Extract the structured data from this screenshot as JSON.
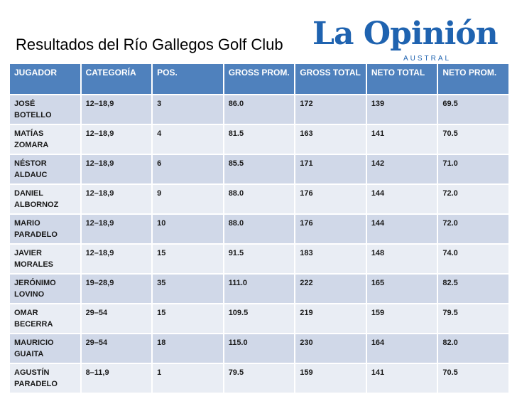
{
  "header": {
    "title": "Resultados del Río Gallegos Golf Club"
  },
  "logo": {
    "name": "La Opinión",
    "subtitle": "AUSTRAL"
  },
  "table": {
    "columns": [
      "JUGADOR",
      "CATEGORÍA",
      "POS.",
      "GROSS PROM.",
      "GROSS TOTAL",
      "NETO TOTAL",
      "NETO PROM."
    ],
    "rows": [
      [
        "JOSÉ BOTELLO",
        "12–18,9",
        "3",
        "86.0",
        "172",
        "139",
        "69.5"
      ],
      [
        "MATÍAS ZOMARA",
        "12–18,9",
        "4",
        "81.5",
        "163",
        "141",
        "70.5"
      ],
      [
        "NÉSTOR ALDAUC",
        "12–18,9",
        "6",
        "85.5",
        "171",
        "142",
        "71.0"
      ],
      [
        "DANIEL ALBORNOZ",
        "12–18,9",
        "9",
        "88.0",
        "176",
        "144",
        "72.0"
      ],
      [
        "MARIO PARADELO",
        "12–18,9",
        "10",
        "88.0",
        "176",
        "144",
        "72.0"
      ],
      [
        "JAVIER MORALES",
        "12–18,9",
        "15",
        "91.5",
        "183",
        "148",
        "74.0"
      ],
      [
        "JERÓNIMO LOVINO",
        "19–28,9",
        "35",
        "111.0",
        "222",
        "165",
        "82.5"
      ],
      [
        "OMAR BECERRA",
        "29–54",
        "15",
        "109.5",
        "219",
        "159",
        "79.5"
      ],
      [
        "MAURICIO GUAITA",
        "29–54",
        "18",
        "115.0",
        "230",
        "164",
        "82.0"
      ],
      [
        "AGUSTÍN PARADELO",
        "8–11,9",
        "1",
        "79.5",
        "159",
        "141",
        "70.5"
      ]
    ]
  }
}
